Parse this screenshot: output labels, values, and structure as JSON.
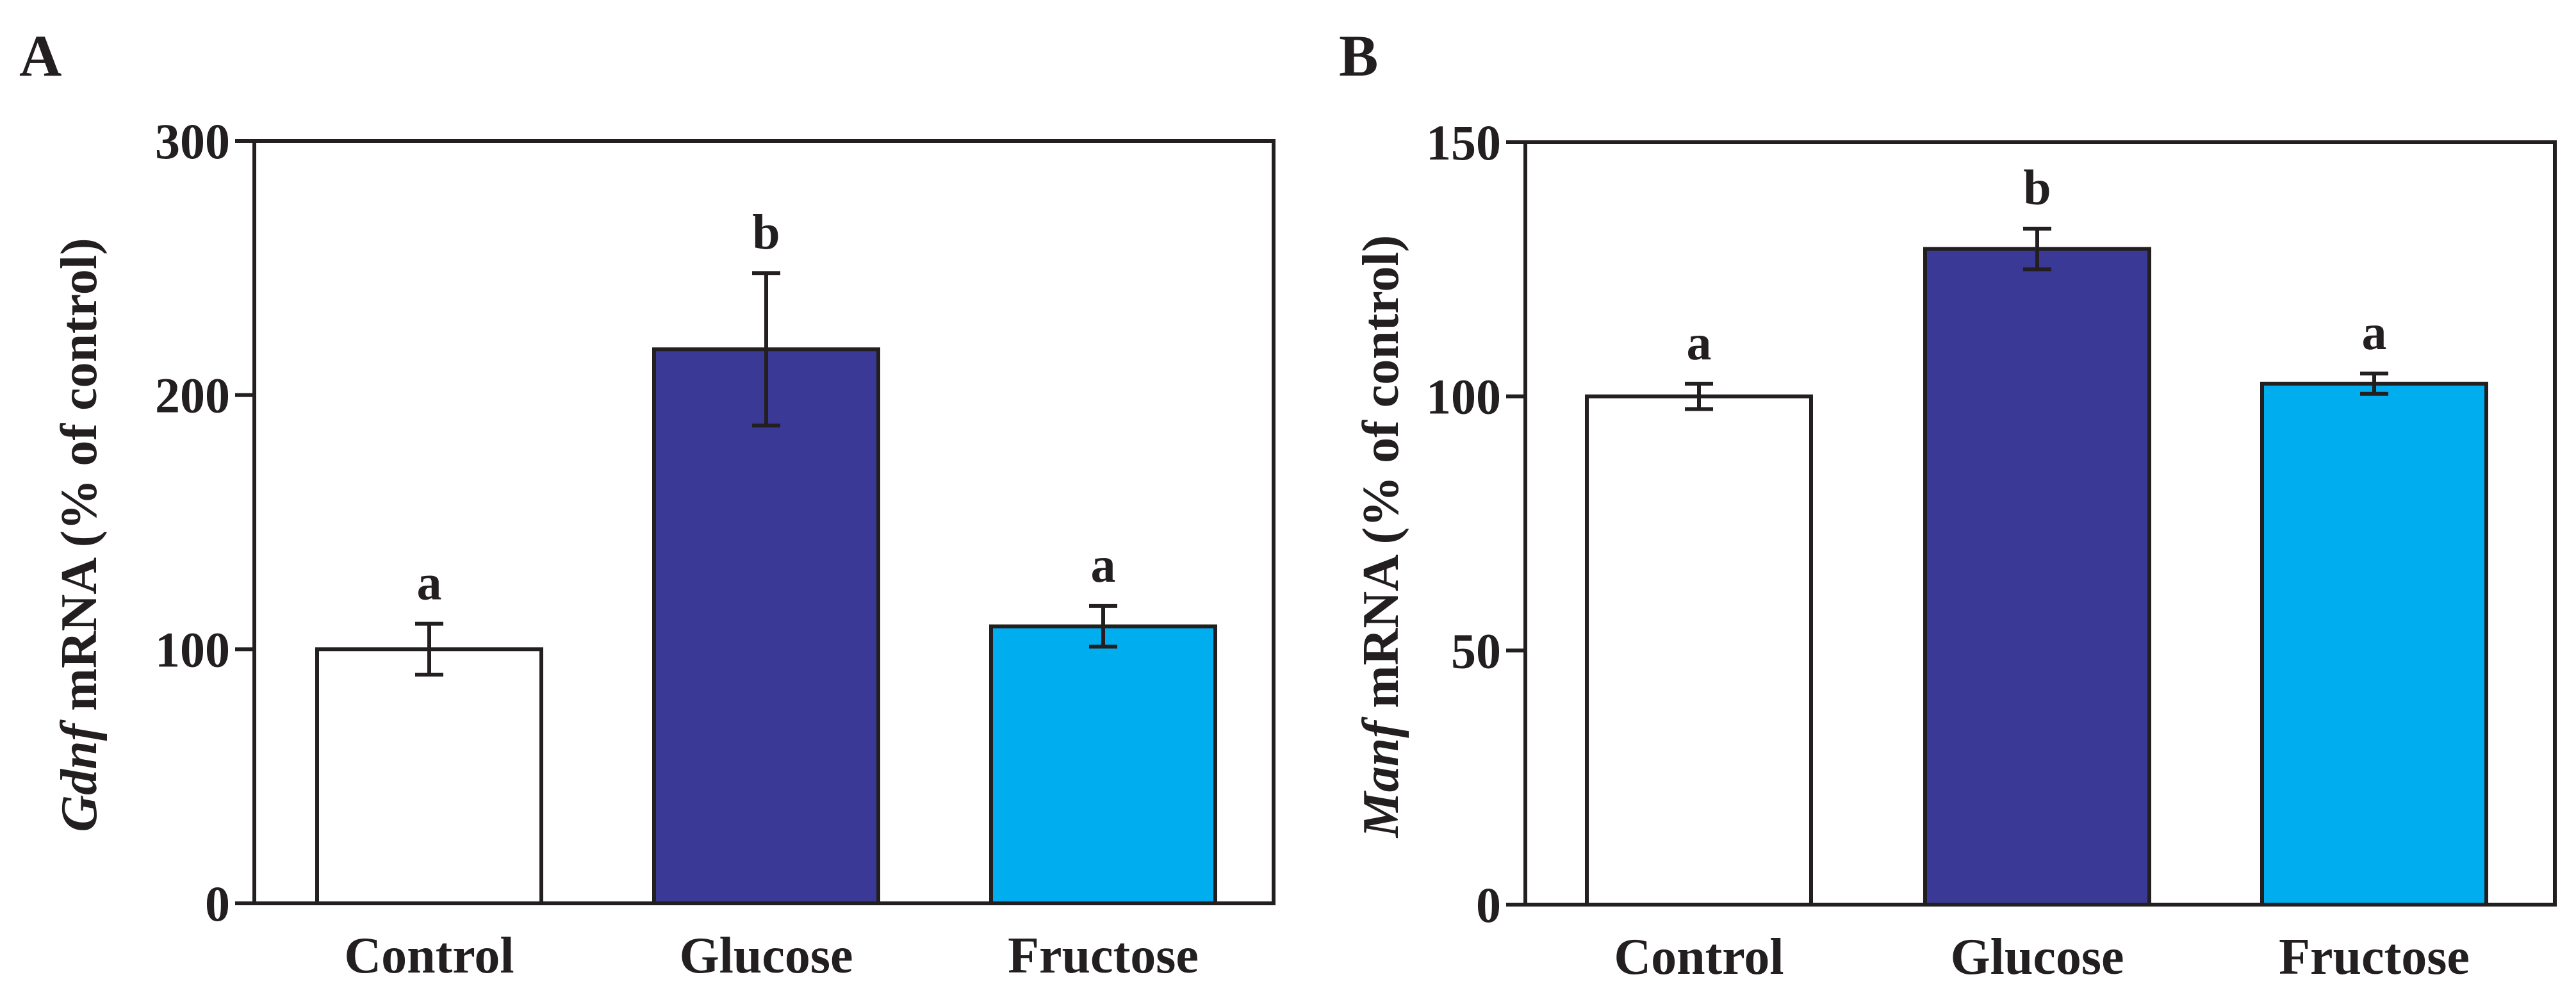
{
  "chart_data": [
    {
      "type": "bar",
      "panel": "A",
      "categories": [
        "Control",
        "Glucose",
        "Fructose"
      ],
      "values": [
        100,
        218,
        109
      ],
      "errors": [
        10,
        30,
        8
      ],
      "significance": [
        "a",
        "b",
        "a"
      ],
      "colors": [
        "#ffffff",
        "#3a3a96",
        "#00aeef"
      ],
      "ylabel_gene": "Gdnf",
      "ylabel_rest": " mRNA (% of control)",
      "ylim": [
        0,
        300
      ],
      "yticks": [
        0,
        100,
        200,
        300
      ],
      "ytick_labels": [
        "0",
        "100",
        "200",
        "300"
      ]
    },
    {
      "type": "bar",
      "panel": "B",
      "categories": [
        "Control",
        "Glucose",
        "Fructose"
      ],
      "values": [
        100,
        129,
        102.5
      ],
      "errors": [
        2.5,
        4,
        2
      ],
      "significance": [
        "a",
        "b",
        "a"
      ],
      "colors": [
        "#ffffff",
        "#3a3a96",
        "#00aeef"
      ],
      "ylabel_gene": "Manf",
      "ylabel_rest": " mRNA (% of control)",
      "ylim": [
        0,
        150
      ],
      "yticks": [
        0,
        50,
        100,
        150
      ],
      "ytick_labels": [
        "0",
        "50",
        "100",
        "150"
      ]
    }
  ]
}
